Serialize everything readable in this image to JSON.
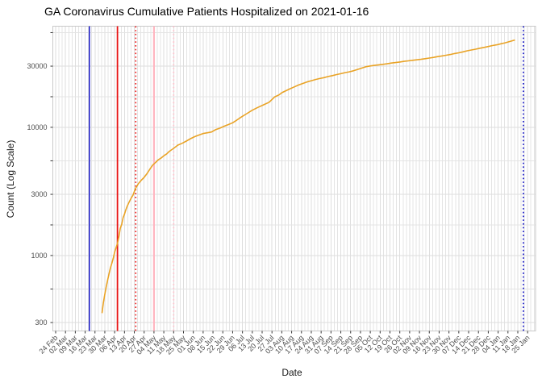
{
  "chart_data": {
    "type": "line",
    "title": "GA Coronavirus Cumulative Patients Hospitalized on 2021-01-16",
    "xlabel": "Date",
    "ylabel": "Count (Log Scale)",
    "y_scale": "log10",
    "ylim": [
      260,
      61000
    ],
    "x_range": [
      "2020-02-24",
      "2021-01-25"
    ],
    "grid": "on",
    "legend": "none",
    "y_ticks": [
      300,
      1000,
      3000,
      10000,
      30000
    ],
    "y_tick_labels": [
      "300",
      "1000",
      "3000",
      "10000",
      "30000"
    ],
    "y_minor_ticks": [
      548,
      1732,
      5477,
      17321,
      54772
    ],
    "x_tick_labels": [
      "24 Feb",
      "02 Mar",
      "09 Mar",
      "16 Mar",
      "23 Mar",
      "30 Mar",
      "06 Apr",
      "13 Apr",
      "20 Apr",
      "27 Apr",
      "04 May",
      "11 May",
      "18 May",
      "25 May",
      "01 Jun",
      "08 Jun",
      "15 Jun",
      "22 Jun",
      "29 Jun",
      "06 Jul",
      "13 Jul",
      "20 Jul",
      "27 Jul",
      "03 Aug",
      "10 Aug",
      "17 Aug",
      "24 Aug",
      "31 Aug",
      "07 Sep",
      "14 Sep",
      "21 Sep",
      "28 Sep",
      "05 Oct",
      "12 Oct",
      "19 Oct",
      "26 Oct",
      "02 Nov",
      "09 Nov",
      "16 Nov",
      "23 Nov",
      "30 Nov",
      "07 Dec",
      "14 Dec",
      "21 Dec",
      "28 Dec",
      "04 Jan",
      "11 Jan",
      "18 Jan",
      "25 Jan"
    ],
    "colors": {
      "series": "#E9A326",
      "grid": "#E4E4E4",
      "grid_major": "#DEDEDE",
      "panel_border": "#C9C9C9",
      "tick": "#333333",
      "tick_label": "#4D4D4D",
      "vline_blue": "#2121C8",
      "vline_red": "#E81313",
      "vline_pink": "#FFB6C1"
    },
    "vlines": [
      {
        "date": "2020-03-19",
        "style": "solid",
        "color": "#2121C8",
        "width": 1.6
      },
      {
        "date": "2020-04-08",
        "style": "solid",
        "color": "#E81313",
        "width": 1.8
      },
      {
        "date": "2020-04-21",
        "style": "dotted",
        "color": "#E81313",
        "width": 1.6
      },
      {
        "date": "2020-05-04",
        "style": "solid",
        "color": "#FFB6C1",
        "width": 2.2
      },
      {
        "date": "2020-05-18",
        "style": "dotted",
        "color": "#FFC4CE",
        "width": 1.8
      },
      {
        "date": "2021-01-22",
        "style": "dotted",
        "color": "#2121C8",
        "width": 1.8
      }
    ],
    "series": [
      {
        "name": "cumulative-patients-hospitalized",
        "color": "#E9A326",
        "points": [
          [
            "2020-03-28",
            355
          ],
          [
            "2020-03-29",
            430
          ],
          [
            "2020-03-30",
            500
          ],
          [
            "2020-03-31",
            570
          ],
          [
            "2020-04-01",
            640
          ],
          [
            "2020-04-02",
            720
          ],
          [
            "2020-04-03",
            800
          ],
          [
            "2020-04-04",
            870
          ],
          [
            "2020-04-05",
            950
          ],
          [
            "2020-04-06",
            1060
          ],
          [
            "2020-04-07",
            1150
          ],
          [
            "2020-04-08",
            1240
          ],
          [
            "2020-04-09",
            1400
          ],
          [
            "2020-04-10",
            1630
          ],
          [
            "2020-04-11",
            1750
          ],
          [
            "2020-04-12",
            1970
          ],
          [
            "2020-04-13",
            2100
          ],
          [
            "2020-04-14",
            2280
          ],
          [
            "2020-04-15",
            2430
          ],
          [
            "2020-04-16",
            2570
          ],
          [
            "2020-04-17",
            2700
          ],
          [
            "2020-04-18",
            2830
          ],
          [
            "2020-04-19",
            2950
          ],
          [
            "2020-04-20",
            3150
          ],
          [
            "2020-04-21",
            3360
          ],
          [
            "2020-04-23",
            3650
          ],
          [
            "2020-04-25",
            3870
          ],
          [
            "2020-04-27",
            4070
          ],
          [
            "2020-04-29",
            4350
          ],
          [
            "2020-05-01",
            4700
          ],
          [
            "2020-05-03",
            5060
          ],
          [
            "2020-05-05",
            5300
          ],
          [
            "2020-05-07",
            5570
          ],
          [
            "2020-05-09",
            5750
          ],
          [
            "2020-05-11",
            6000
          ],
          [
            "2020-05-13",
            6200
          ],
          [
            "2020-05-15",
            6500
          ],
          [
            "2020-05-18",
            6850
          ],
          [
            "2020-05-21",
            7260
          ],
          [
            "2020-05-24",
            7500
          ],
          [
            "2020-05-27",
            7810
          ],
          [
            "2020-05-30",
            8150
          ],
          [
            "2020-06-02",
            8450
          ],
          [
            "2020-06-05",
            8700
          ],
          [
            "2020-06-08",
            8950
          ],
          [
            "2020-06-11",
            9060
          ],
          [
            "2020-06-14",
            9200
          ],
          [
            "2020-06-17",
            9600
          ],
          [
            "2020-06-20",
            9850
          ],
          [
            "2020-06-23",
            10200
          ],
          [
            "2020-06-26",
            10500
          ],
          [
            "2020-06-29",
            10850
          ],
          [
            "2020-07-02",
            11400
          ],
          [
            "2020-07-05",
            12000
          ],
          [
            "2020-07-09",
            12770
          ],
          [
            "2020-07-13",
            13600
          ],
          [
            "2020-07-17",
            14290
          ],
          [
            "2020-07-21",
            14970
          ],
          [
            "2020-07-25",
            15700
          ],
          [
            "2020-07-27",
            16480
          ],
          [
            "2020-07-29",
            17300
          ],
          [
            "2020-08-01",
            17900
          ],
          [
            "2020-08-03",
            18600
          ],
          [
            "2020-08-06",
            19300
          ],
          [
            "2020-08-09",
            20000
          ],
          [
            "2020-08-12",
            20700
          ],
          [
            "2020-08-15",
            21400
          ],
          [
            "2020-08-18",
            22000
          ],
          [
            "2020-08-21",
            22600
          ],
          [
            "2020-08-24",
            23100
          ],
          [
            "2020-08-27",
            23600
          ],
          [
            "2020-08-30",
            24000
          ],
          [
            "2020-09-02",
            24400
          ],
          [
            "2020-09-05",
            24900
          ],
          [
            "2020-09-08",
            25300
          ],
          [
            "2020-09-11",
            25800
          ],
          [
            "2020-09-14",
            26200
          ],
          [
            "2020-09-17",
            26700
          ],
          [
            "2020-09-20",
            27100
          ],
          [
            "2020-09-23",
            27600
          ],
          [
            "2020-09-26",
            28300
          ],
          [
            "2020-09-29",
            29000
          ],
          [
            "2020-10-02",
            29700
          ],
          [
            "2020-10-05",
            30100
          ],
          [
            "2020-10-08",
            30400
          ],
          [
            "2020-10-11",
            30700
          ],
          [
            "2020-10-14",
            31000
          ],
          [
            "2020-10-17",
            31300
          ],
          [
            "2020-10-20",
            31700
          ],
          [
            "2020-10-23",
            32000
          ],
          [
            "2020-10-26",
            32300
          ],
          [
            "2020-10-29",
            32700
          ],
          [
            "2020-11-01",
            33000
          ],
          [
            "2020-11-04",
            33300
          ],
          [
            "2020-11-07",
            33600
          ],
          [
            "2020-11-10",
            33900
          ],
          [
            "2020-11-13",
            34300
          ],
          [
            "2020-11-16",
            34700
          ],
          [
            "2020-11-19",
            35100
          ],
          [
            "2020-11-22",
            35600
          ],
          [
            "2020-11-25",
            36000
          ],
          [
            "2020-11-28",
            36500
          ],
          [
            "2020-12-01",
            37000
          ],
          [
            "2020-12-04",
            37600
          ],
          [
            "2020-12-07",
            38100
          ],
          [
            "2020-12-10",
            38800
          ],
          [
            "2020-12-13",
            39500
          ],
          [
            "2020-12-16",
            40100
          ],
          [
            "2020-12-19",
            40700
          ],
          [
            "2020-12-22",
            41400
          ],
          [
            "2020-12-25",
            42000
          ],
          [
            "2020-12-28",
            42700
          ],
          [
            "2020-12-31",
            43400
          ],
          [
            "2021-01-03",
            44000
          ],
          [
            "2021-01-06",
            44800
          ],
          [
            "2021-01-09",
            45600
          ],
          [
            "2021-01-12",
            46600
          ],
          [
            "2021-01-14",
            47300
          ],
          [
            "2021-01-16",
            48000
          ]
        ]
      }
    ]
  }
}
